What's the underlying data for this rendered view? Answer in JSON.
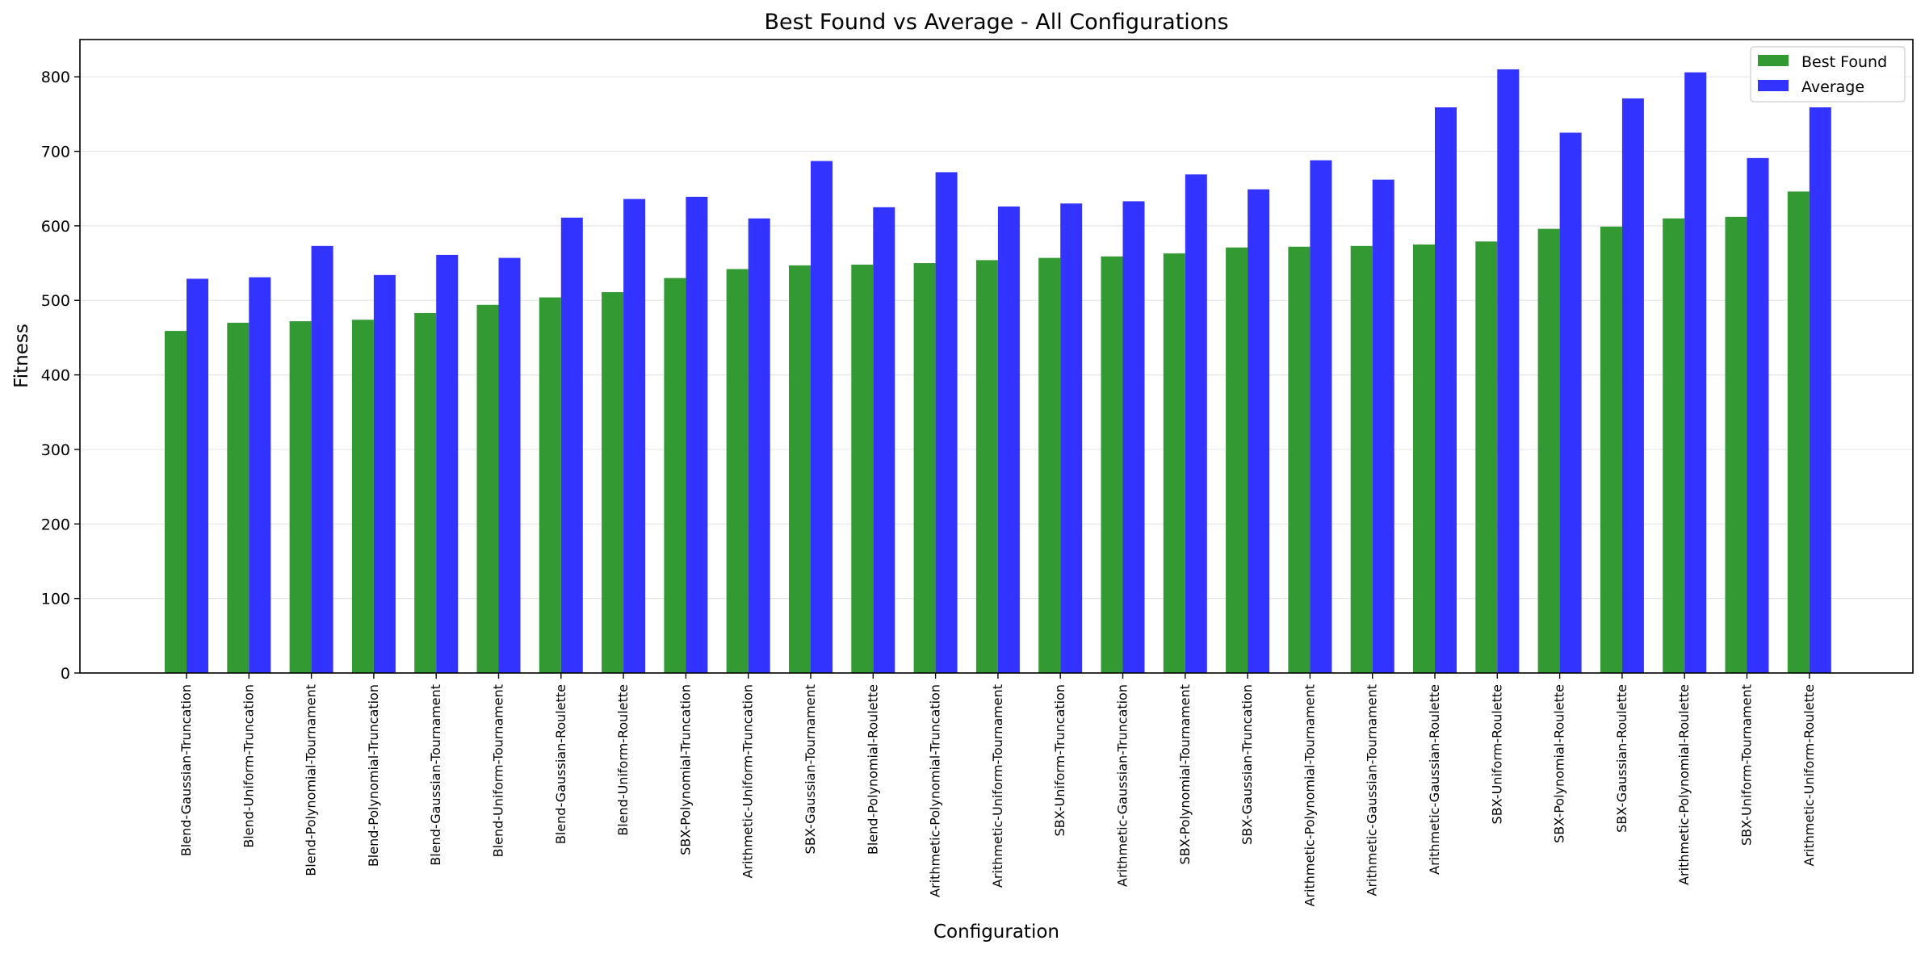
{
  "chart_data": {
    "type": "bar",
    "title": "Best Found vs Average - All Configurations",
    "xlabel": "Configuration",
    "ylabel": "Fitness",
    "ylim": [
      0,
      850
    ],
    "yticks": [
      0,
      100,
      200,
      300,
      400,
      500,
      600,
      700,
      800
    ],
    "grid": "y",
    "legend_position": "top-right",
    "categories": [
      "Blend-Gaussian-Truncation",
      "Blend-Uniform-Truncation",
      "Blend-Polynomial-Tournament",
      "Blend-Polynomial-Truncation",
      "Blend-Gaussian-Tournament",
      "Blend-Uniform-Tournament",
      "Blend-Gaussian-Roulette",
      "Blend-Uniform-Roulette",
      "SBX-Polynomial-Truncation",
      "Arithmetic-Uniform-Truncation",
      "SBX-Gaussian-Tournament",
      "Blend-Polynomial-Roulette",
      "Arithmetic-Polynomial-Truncation",
      "Arithmetic-Uniform-Tournament",
      "SBX-Uniform-Truncation",
      "Arithmetic-Gaussian-Truncation",
      "SBX-Polynomial-Tournament",
      "SBX-Gaussian-Truncation",
      "Arithmetic-Polynomial-Tournament",
      "Arithmetic-Gaussian-Tournament",
      "Arithmetic-Gaussian-Roulette",
      "SBX-Uniform-Roulette",
      "SBX-Polynomial-Roulette",
      "SBX-Gaussian-Roulette",
      "Arithmetic-Polynomial-Roulette",
      "SBX-Uniform-Tournament",
      "Arithmetic-Uniform-Roulette"
    ],
    "series": [
      {
        "name": "Best Found",
        "color": "#339933",
        "values": [
          459,
          470,
          472,
          474,
          483,
          494,
          504,
          511,
          530,
          542,
          547,
          548,
          550,
          554,
          557,
          559,
          563,
          571,
          572,
          573,
          575,
          579,
          596,
          599,
          610,
          612,
          646
        ]
      },
      {
        "name": "Average",
        "color": "#3333ff",
        "values": [
          529,
          531,
          573,
          534,
          561,
          557,
          611,
          636,
          639,
          610,
          687,
          625,
          672,
          626,
          630,
          633,
          669,
          649,
          688,
          662,
          759,
          810,
          725,
          771,
          806,
          691,
          759
        ]
      }
    ]
  }
}
